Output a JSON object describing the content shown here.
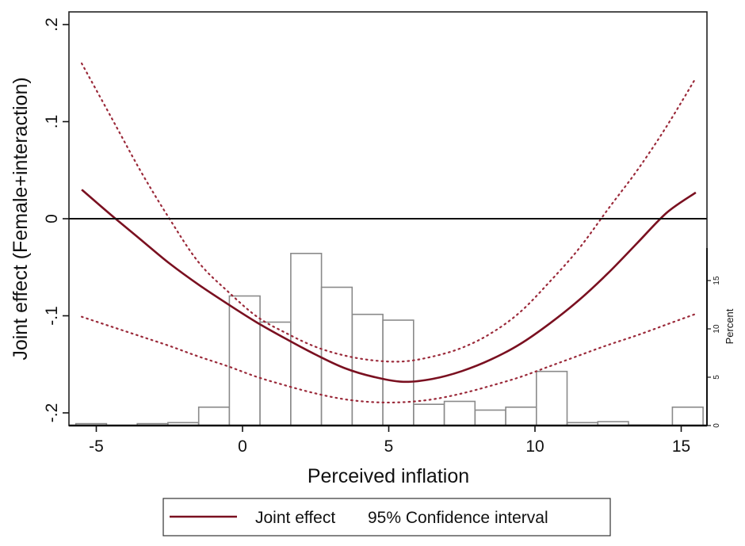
{
  "chart_data": {
    "type": "line",
    "title": "",
    "xlabel": "Perceived inflation",
    "ylabel": "Joint effect (Female+interaction)",
    "y2label": "Percent",
    "xlim": [
      -5.9,
      15.9
    ],
    "ylim": [
      -0.213,
      0.213
    ],
    "y2lim": [
      0,
      18.5
    ],
    "xticks": [
      -5,
      0,
      5,
      10,
      15
    ],
    "xtick_labels": [
      "-5",
      "0",
      "5",
      "10",
      "15"
    ],
    "yticks": [
      0.2,
      0.1,
      0,
      -0.1,
      -0.2
    ],
    "ytick_labels": [
      ".2",
      ".1",
      "0",
      "-.1",
      "-.2"
    ],
    "y2ticks": [
      0,
      5,
      10,
      15
    ],
    "y2tick_labels": [
      "0",
      "5",
      "10",
      "15"
    ],
    "reference_line_y": 0,
    "grid": false,
    "series": [
      {
        "name": "Joint effect",
        "style": "solid",
        "color": "#7a1020",
        "x": [
          -5.5,
          -4.5,
          -3.5,
          -2.5,
          -1.5,
          -0.5,
          0.5,
          1.5,
          2.5,
          3.5,
          4.5,
          5.5,
          6.5,
          7.5,
          8.5,
          9.5,
          10.5,
          11.5,
          12.5,
          13.5,
          14.5,
          15.5
        ],
        "y": [
          0.03,
          0.004,
          -0.021,
          -0.046,
          -0.068,
          -0.088,
          -0.107,
          -0.124,
          -0.14,
          -0.154,
          -0.163,
          -0.168,
          -0.165,
          -0.157,
          -0.145,
          -0.129,
          -0.108,
          -0.084,
          -0.056,
          -0.025,
          0.006,
          0.027
        ]
      },
      {
        "name": "95% CI upper",
        "style": "dotted",
        "color": "#9b2a3a",
        "x": [
          -5.5,
          -4.5,
          -3.5,
          -2.5,
          -1.5,
          -0.5,
          0.5,
          1.5,
          2.5,
          3.5,
          4.5,
          5.5,
          6.5,
          7.5,
          8.5,
          9.5,
          10.5,
          11.5,
          12.5,
          13.5,
          14.5,
          15.5
        ],
        "y": [
          0.16,
          0.105,
          0.05,
          0.0,
          -0.045,
          -0.075,
          -0.101,
          -0.118,
          -0.132,
          -0.141,
          -0.146,
          -0.147,
          -0.142,
          -0.133,
          -0.118,
          -0.096,
          -0.065,
          -0.031,
          0.01,
          0.05,
          0.095,
          0.145
        ]
      },
      {
        "name": "95% CI lower",
        "style": "dotted",
        "color": "#9b2a3a",
        "x": [
          -5.5,
          -4.5,
          -3.5,
          -2.5,
          -1.5,
          -0.5,
          0.5,
          1.5,
          2.5,
          3.5,
          4.5,
          5.5,
          6.5,
          7.5,
          8.5,
          9.5,
          10.5,
          11.5,
          12.5,
          13.5,
          14.5,
          15.5
        ],
        "y": [
          -0.101,
          -0.111,
          -0.121,
          -0.131,
          -0.142,
          -0.152,
          -0.163,
          -0.172,
          -0.18,
          -0.186,
          -0.189,
          -0.189,
          -0.186,
          -0.18,
          -0.172,
          -0.163,
          -0.152,
          -0.141,
          -0.13,
          -0.12,
          -0.109,
          -0.098
        ]
      }
    ],
    "histogram": {
      "name": "Perceived inflation distribution",
      "axis": "right",
      "bin_width": 1.05,
      "bins": [
        {
          "start": -5.7,
          "percent": 0.2
        },
        {
          "start": -4.65,
          "percent": 0.0
        },
        {
          "start": -3.6,
          "percent": 0.2
        },
        {
          "start": -2.55,
          "percent": 0.3
        },
        {
          "start": -1.5,
          "percent": 1.9
        },
        {
          "start": -0.45,
          "percent": 13.4
        },
        {
          "start": 0.6,
          "percent": 10.7
        },
        {
          "start": 1.65,
          "percent": 17.8
        },
        {
          "start": 2.7,
          "percent": 14.3
        },
        {
          "start": 3.75,
          "percent": 11.5
        },
        {
          "start": 4.8,
          "percent": 10.9
        },
        {
          "start": 5.85,
          "percent": 2.2
        },
        {
          "start": 6.9,
          "percent": 2.5
        },
        {
          "start": 7.95,
          "percent": 1.6
        },
        {
          "start": 9.0,
          "percent": 1.9
        },
        {
          "start": 10.05,
          "percent": 5.6
        },
        {
          "start": 11.1,
          "percent": 0.3
        },
        {
          "start": 12.15,
          "percent": 0.4
        },
        {
          "start": 13.2,
          "percent": 0.05
        },
        {
          "start": 14.25,
          "percent": 0.0
        },
        {
          "start": 14.7,
          "percent": 1.9
        }
      ]
    },
    "legend": {
      "position": "bottom",
      "entries": [
        {
          "label": "Joint effect",
          "style": "solid",
          "color": "#7a1020"
        },
        {
          "label": "95% Confidence interval",
          "style": "dotted",
          "color": "#9b2a3a"
        }
      ]
    }
  }
}
